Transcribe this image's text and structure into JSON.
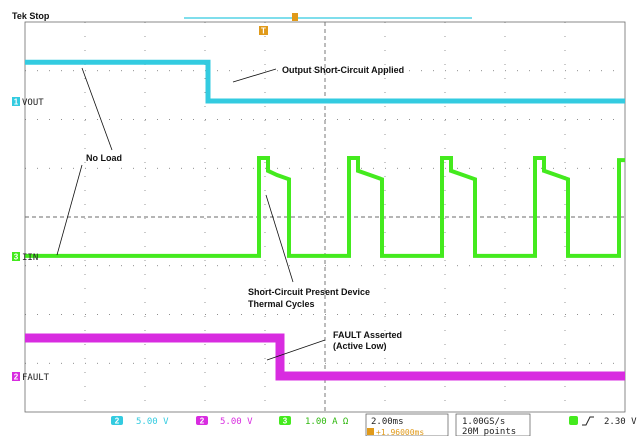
{
  "header": {
    "status": "Tek Stop"
  },
  "colors": {
    "ch1": "#33cbe0",
    "ch2": "#d82ce0",
    "ch3": "#44ea1e",
    "grid": "#6b6b6b",
    "trigger": "#e09a1a"
  },
  "channels": [
    {
      "id": "1",
      "marker": "1",
      "label": "VOUT",
      "color": "#33cbe0"
    },
    {
      "id": "3",
      "marker": "3",
      "label": "IIN",
      "color": "#44ea1e"
    },
    {
      "id": "2",
      "marker": "2",
      "label": "FAULT",
      "color": "#d82ce0"
    }
  ],
  "trigger_marker": "T",
  "annotations": {
    "short_circuit": "Output Short-Circuit Applied",
    "no_load": "No Load",
    "thermal_1": "Short-Circuit Present Device",
    "thermal_2": "Thermal Cycles",
    "fault_1": "FAULT Asserted",
    "fault_2": "(Active Low)"
  },
  "readouts": {
    "ch1_num": "2",
    "ch1_scale": "5.00 V",
    "ch2_num": "2",
    "ch2_scale": "5.00 V",
    "ch3_num": "3",
    "ch3_scale": "1.00 A Ω",
    "timebase": "2.00ms",
    "delay": "+1.96000ms",
    "sample_rate": "1.00GS/s",
    "record_length": "20M points",
    "trigger_level": "2.30 V"
  },
  "chart_data": {
    "type": "line",
    "title": "",
    "xlabel": "",
    "ylabel": "",
    "x_unit": "ms",
    "x_range": [
      -10,
      10
    ],
    "series": [
      {
        "name": "VOUT",
        "x": [
          -10,
          -3.9,
          -3.9,
          10
        ],
        "y": [
          17.5,
          17.5,
          10.0,
          10.0
        ]
      },
      {
        "name": "IIN",
        "x": [
          -10,
          -2.2,
          -2.2,
          -1.9,
          -1.9,
          -1.6,
          -1.2,
          -1.2,
          0.8,
          0.8,
          1.1,
          1.1,
          1.5,
          1.9,
          1.9,
          3.9,
          3.9,
          4.2,
          4.2,
          4.6,
          5.0,
          5.0,
          7.0,
          7.0,
          7.3,
          7.3,
          7.7,
          8.1,
          8.1,
          9.8,
          9.8,
          10
        ],
        "y": [
          0.05,
          0.05,
          2.35,
          2.35,
          2.05,
          1.95,
          1.85,
          0.05,
          0.05,
          2.35,
          2.35,
          2.05,
          1.95,
          1.85,
          0.05,
          0.05,
          2.35,
          2.35,
          2.05,
          1.95,
          1.85,
          0.05,
          0.05,
          2.35,
          2.35,
          2.05,
          1.95,
          1.85,
          0.05,
          0.05,
          2.3,
          2.3
        ]
      },
      {
        "name": "FAULT",
        "x": [
          -10,
          -1.5,
          -1.5,
          10
        ],
        "y": [
          4.9,
          4.9,
          0.0,
          0.0
        ]
      }
    ]
  }
}
